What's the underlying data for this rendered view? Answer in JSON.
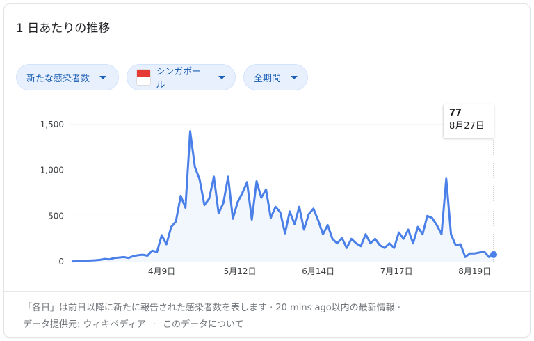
{
  "header": {
    "title": "1 日あたりの推移"
  },
  "filters": [
    {
      "label": "新たな感染者数",
      "icon": "caret-down-icon"
    },
    {
      "label": "シンガポール",
      "icon": "singapore-flag-icon"
    },
    {
      "label": "全期間",
      "icon": "caret-down-icon"
    }
  ],
  "tooltip": {
    "value": "77",
    "date": "8月27日"
  },
  "footer": {
    "note": "「各日」は前日以降に新たに報告された感染者数を表します · 20 mins ago以内の最新情報 ·",
    "source_label": "データ提供元:",
    "source_link": "ウィキペディア",
    "sep": "·",
    "about_link": "このデータについて"
  },
  "colors": {
    "line": "#4a80e8",
    "chip_bg": "#e8f0fe",
    "chip_text": "#1a5fb4"
  },
  "chart_data": {
    "type": "area",
    "ylim": [
      0,
      1500
    ],
    "yticks": [
      0,
      500,
      1000,
      1500
    ],
    "ytick_labels": [
      "0",
      "500",
      "1,000",
      "1,500"
    ],
    "xtick_labels": [
      {
        "date": "2020-04-09",
        "label": "4月9日"
      },
      {
        "date": "2020-05-12",
        "label": "5月12日"
      },
      {
        "date": "2020-06-14",
        "label": "6月14日"
      },
      {
        "date": "2020-07-17",
        "label": "7月17日"
      },
      {
        "date": "2020-08-19",
        "label": "8月19日"
      }
    ],
    "grid": true,
    "x": [
      "2020-03-02",
      "2020-03-04",
      "2020-03-06",
      "2020-03-08",
      "2020-03-10",
      "2020-03-12",
      "2020-03-14",
      "2020-03-16",
      "2020-03-18",
      "2020-03-20",
      "2020-03-22",
      "2020-03-24",
      "2020-03-26",
      "2020-03-28",
      "2020-03-30",
      "2020-04-01",
      "2020-04-03",
      "2020-04-05",
      "2020-04-07",
      "2020-04-09",
      "2020-04-11",
      "2020-04-13",
      "2020-04-15",
      "2020-04-17",
      "2020-04-19",
      "2020-04-21",
      "2020-04-23",
      "2020-04-25",
      "2020-04-27",
      "2020-04-29",
      "2020-05-01",
      "2020-05-03",
      "2020-05-05",
      "2020-05-07",
      "2020-05-09",
      "2020-05-11",
      "2020-05-13",
      "2020-05-15",
      "2020-05-17",
      "2020-05-19",
      "2020-05-21",
      "2020-05-23",
      "2020-05-25",
      "2020-05-27",
      "2020-05-29",
      "2020-05-31",
      "2020-06-02",
      "2020-06-04",
      "2020-06-06",
      "2020-06-08",
      "2020-06-10",
      "2020-06-12",
      "2020-06-14",
      "2020-06-16",
      "2020-06-18",
      "2020-06-20",
      "2020-06-22",
      "2020-06-24",
      "2020-06-26",
      "2020-06-28",
      "2020-06-30",
      "2020-07-02",
      "2020-07-04",
      "2020-07-06",
      "2020-07-08",
      "2020-07-10",
      "2020-07-12",
      "2020-07-14",
      "2020-07-16",
      "2020-07-18",
      "2020-07-20",
      "2020-07-22",
      "2020-07-24",
      "2020-07-26",
      "2020-07-28",
      "2020-07-30",
      "2020-08-01",
      "2020-08-03",
      "2020-08-05",
      "2020-08-07",
      "2020-08-09",
      "2020-08-11",
      "2020-08-13",
      "2020-08-15",
      "2020-08-17",
      "2020-08-19",
      "2020-08-21",
      "2020-08-23",
      "2020-08-25",
      "2020-08-27"
    ],
    "values": [
      2,
      5,
      8,
      10,
      12,
      15,
      20,
      30,
      25,
      40,
      45,
      50,
      40,
      60,
      70,
      75,
      65,
      120,
      106,
      290,
      190,
      380,
      440,
      720,
      590,
      1426,
      1037,
      900,
      620,
      690,
      930,
      530,
      640,
      930,
      470,
      650,
      750,
      870,
      460,
      880,
      700,
      790,
      480,
      600,
      540,
      310,
      550,
      410,
      600,
      350,
      520,
      580,
      450,
      300,
      400,
      250,
      200,
      260,
      150,
      250,
      200,
      170,
      300,
      200,
      250,
      180,
      150,
      200,
      150,
      320,
      250,
      350,
      200,
      380,
      300,
      500,
      480,
      400,
      300,
      908,
      300,
      180,
      190,
      50,
      90,
      90,
      100,
      110,
      50,
      77
    ],
    "highlight": {
      "date": "2020-08-27",
      "value": 77
    }
  }
}
